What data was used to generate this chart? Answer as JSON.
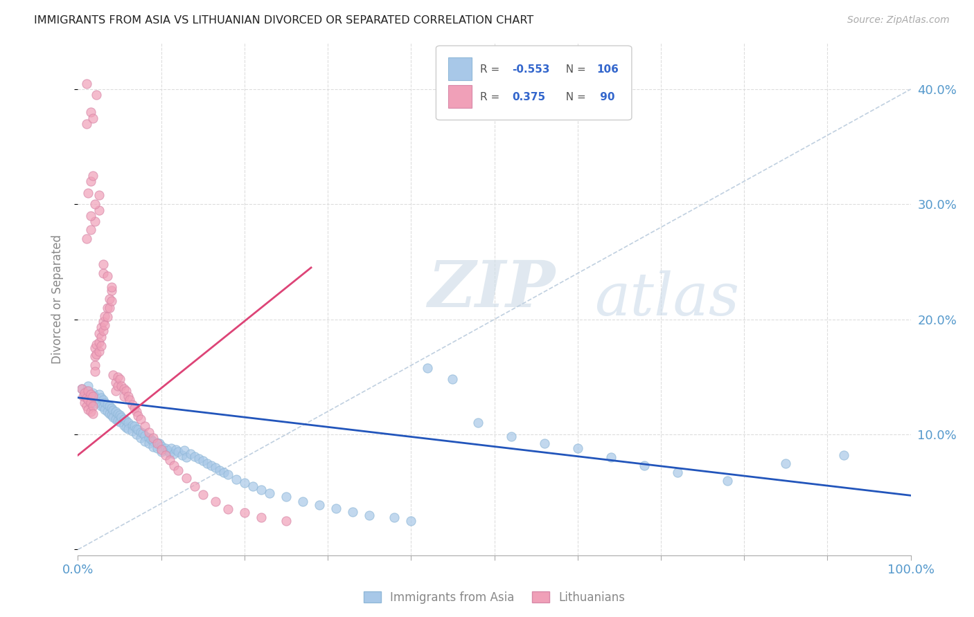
{
  "title": "IMMIGRANTS FROM ASIA VS LITHUANIAN DIVORCED OR SEPARATED CORRELATION CHART",
  "source": "Source: ZipAtlas.com",
  "ylabel": "Divorced or Separated",
  "right_y_ticks": [
    0.0,
    0.1,
    0.2,
    0.3,
    0.4
  ],
  "right_y_tick_labels": [
    "",
    "10.0%",
    "20.0%",
    "30.0%",
    "40.0%"
  ],
  "xlim": [
    0.0,
    1.0
  ],
  "ylim": [
    -0.005,
    0.44
  ],
  "color_blue": "#a8c8e8",
  "color_pink": "#f0a0b8",
  "line_blue": "#2255bb",
  "line_pink": "#dd4477",
  "line_dashed_color": "#c0d0e0",
  "watermark_zip": "ZIP",
  "watermark_atlas": "atlas",
  "watermark_color": "#c8d8e8",
  "blue_trend_x0": 0.0,
  "blue_trend_y0": 0.132,
  "blue_trend_x1": 1.0,
  "blue_trend_y1": 0.047,
  "pink_trend_x0": 0.0,
  "pink_trend_y0": 0.082,
  "pink_trend_x1": 0.28,
  "pink_trend_y1": 0.245,
  "blue_x": [
    0.005,
    0.008,
    0.01,
    0.012,
    0.015,
    0.015,
    0.018,
    0.018,
    0.02,
    0.02,
    0.022,
    0.025,
    0.025,
    0.028,
    0.028,
    0.03,
    0.03,
    0.032,
    0.032,
    0.035,
    0.035,
    0.038,
    0.038,
    0.04,
    0.04,
    0.042,
    0.042,
    0.045,
    0.045,
    0.048,
    0.048,
    0.05,
    0.05,
    0.052,
    0.055,
    0.055,
    0.058,
    0.058,
    0.06,
    0.06,
    0.065,
    0.065,
    0.068,
    0.07,
    0.07,
    0.072,
    0.075,
    0.075,
    0.078,
    0.08,
    0.08,
    0.085,
    0.085,
    0.088,
    0.09,
    0.09,
    0.095,
    0.095,
    0.098,
    0.1,
    0.1,
    0.105,
    0.108,
    0.11,
    0.112,
    0.115,
    0.118,
    0.12,
    0.125,
    0.128,
    0.13,
    0.135,
    0.14,
    0.145,
    0.15,
    0.155,
    0.16,
    0.165,
    0.17,
    0.175,
    0.18,
    0.19,
    0.2,
    0.21,
    0.22,
    0.23,
    0.25,
    0.27,
    0.29,
    0.31,
    0.33,
    0.35,
    0.38,
    0.4,
    0.42,
    0.45,
    0.48,
    0.52,
    0.56,
    0.6,
    0.64,
    0.68,
    0.72,
    0.78,
    0.85,
    0.92
  ],
  "blue_y": [
    0.14,
    0.133,
    0.138,
    0.142,
    0.135,
    0.128,
    0.136,
    0.13,
    0.133,
    0.127,
    0.132,
    0.135,
    0.128,
    0.132,
    0.125,
    0.13,
    0.124,
    0.128,
    0.122,
    0.126,
    0.12,
    0.125,
    0.118,
    0.123,
    0.117,
    0.121,
    0.115,
    0.12,
    0.113,
    0.118,
    0.112,
    0.117,
    0.111,
    0.115,
    0.113,
    0.108,
    0.112,
    0.106,
    0.11,
    0.105,
    0.108,
    0.103,
    0.107,
    0.105,
    0.1,
    0.104,
    0.102,
    0.097,
    0.101,
    0.099,
    0.094,
    0.097,
    0.092,
    0.096,
    0.094,
    0.089,
    0.093,
    0.088,
    0.092,
    0.09,
    0.085,
    0.088,
    0.086,
    0.084,
    0.088,
    0.083,
    0.087,
    0.085,
    0.082,
    0.086,
    0.08,
    0.083,
    0.081,
    0.079,
    0.077,
    0.075,
    0.073,
    0.071,
    0.069,
    0.067,
    0.065,
    0.061,
    0.058,
    0.055,
    0.052,
    0.049,
    0.046,
    0.042,
    0.039,
    0.036,
    0.033,
    0.03,
    0.028,
    0.025,
    0.158,
    0.148,
    0.11,
    0.098,
    0.092,
    0.088,
    0.08,
    0.073,
    0.067,
    0.06,
    0.075,
    0.082
  ],
  "pink_x": [
    0.005,
    0.006,
    0.008,
    0.008,
    0.01,
    0.01,
    0.012,
    0.012,
    0.012,
    0.015,
    0.015,
    0.015,
    0.018,
    0.018,
    0.018,
    0.02,
    0.02,
    0.02,
    0.022,
    0.022,
    0.025,
    0.025,
    0.025,
    0.028,
    0.028,
    0.028,
    0.03,
    0.03,
    0.032,
    0.032,
    0.035,
    0.035,
    0.038,
    0.038,
    0.04,
    0.04,
    0.042,
    0.045,
    0.045,
    0.048,
    0.048,
    0.05,
    0.052,
    0.055,
    0.055,
    0.058,
    0.06,
    0.062,
    0.065,
    0.068,
    0.07,
    0.072,
    0.075,
    0.08,
    0.085,
    0.09,
    0.095,
    0.1,
    0.105,
    0.11,
    0.115,
    0.12,
    0.13,
    0.14,
    0.15,
    0.165,
    0.18,
    0.2,
    0.22,
    0.25,
    0.01,
    0.015,
    0.02,
    0.025,
    0.03,
    0.01,
    0.015,
    0.018,
    0.022,
    0.01,
    0.012,
    0.015,
    0.018,
    0.015,
    0.02,
    0.025,
    0.03,
    0.035,
    0.04,
    0.02
  ],
  "pink_y": [
    0.14,
    0.133,
    0.136,
    0.128,
    0.132,
    0.125,
    0.138,
    0.13,
    0.122,
    0.135,
    0.128,
    0.12,
    0.133,
    0.125,
    0.118,
    0.175,
    0.168,
    0.16,
    0.178,
    0.17,
    0.188,
    0.18,
    0.172,
    0.193,
    0.185,
    0.177,
    0.198,
    0.19,
    0.203,
    0.195,
    0.21,
    0.202,
    0.218,
    0.21,
    0.225,
    0.216,
    0.152,
    0.145,
    0.138,
    0.15,
    0.142,
    0.148,
    0.142,
    0.14,
    0.133,
    0.138,
    0.133,
    0.13,
    0.126,
    0.123,
    0.12,
    0.116,
    0.113,
    0.107,
    0.102,
    0.097,
    0.092,
    0.087,
    0.082,
    0.078,
    0.073,
    0.069,
    0.062,
    0.055,
    0.048,
    0.042,
    0.035,
    0.032,
    0.028,
    0.025,
    0.27,
    0.278,
    0.285,
    0.295,
    0.24,
    0.37,
    0.38,
    0.375,
    0.395,
    0.405,
    0.31,
    0.32,
    0.325,
    0.29,
    0.3,
    0.308,
    0.248,
    0.238,
    0.228,
    0.155
  ]
}
